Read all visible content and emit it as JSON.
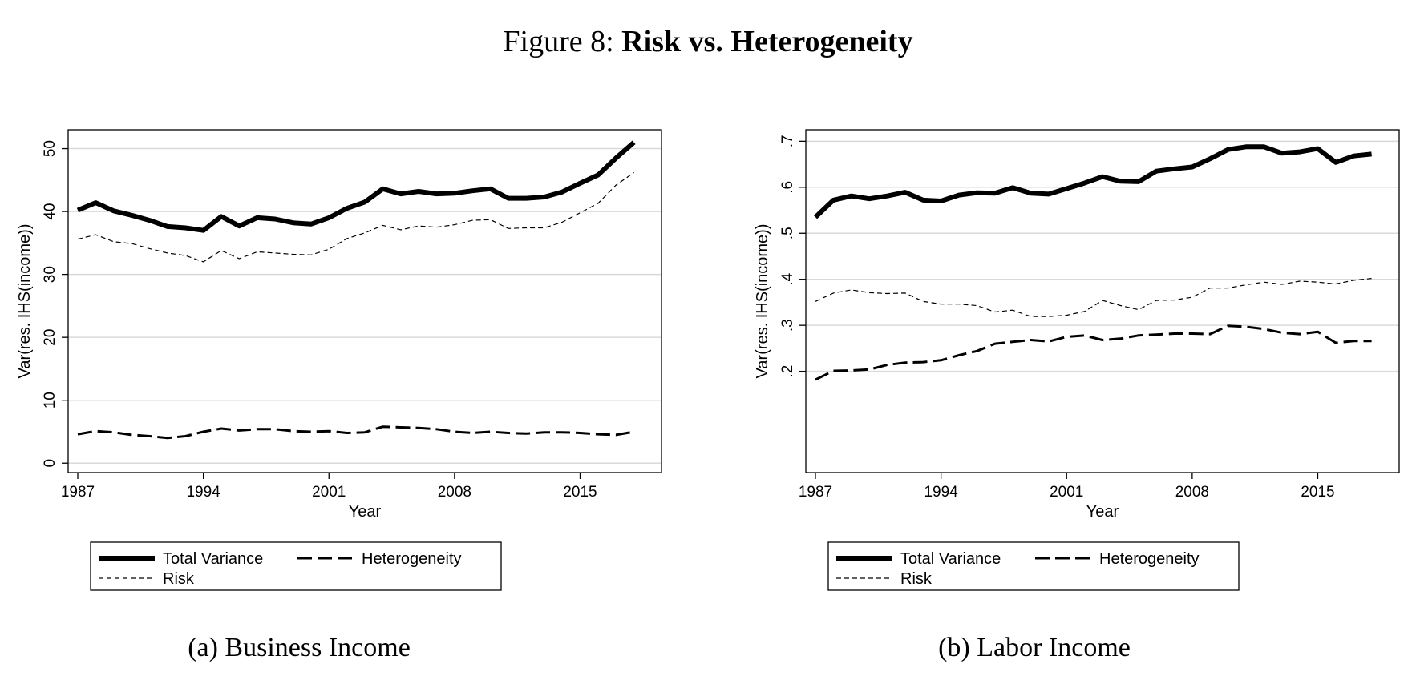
{
  "figure": {
    "prefix": "Figure 8:",
    "title": "Risk vs. Heterogeneity"
  },
  "captions": [
    "(a) Business Income",
    "(b) Labor Income"
  ],
  "colors": {
    "lines": "#000000",
    "grid": "#d9d9d9",
    "frame": "#000000"
  },
  "chart_data": [
    {
      "type": "line",
      "title": "",
      "xlabel": "Year",
      "ylabel": "Var(res. IHS(income))",
      "xlim": [
        1987,
        2019
      ],
      "ylim": [
        -1.5,
        53
      ],
      "xticks": [
        1987,
        1994,
        2001,
        2008,
        2015
      ],
      "yticks": [
        0,
        10,
        20,
        30,
        40,
        50
      ],
      "ytick_labels": [
        "0",
        "10",
        "20",
        "30",
        "40",
        "50"
      ],
      "grid": true,
      "legend_placement": "bottom",
      "x": [
        1987,
        1988,
        1989,
        1990,
        1991,
        1992,
        1993,
        1994,
        1995,
        1996,
        1997,
        1998,
        1999,
        2000,
        2001,
        2002,
        2003,
        2004,
        2005,
        2006,
        2007,
        2008,
        2009,
        2010,
        2011,
        2012,
        2013,
        2014,
        2015,
        2016,
        2017,
        2018,
        2019
      ],
      "series": [
        {
          "name": "Total Variance",
          "style": "thick-solid",
          "values": [
            40.2,
            41.4,
            40.1,
            39.4,
            38.6,
            37.6,
            37.4,
            37.0,
            39.2,
            37.7,
            39.0,
            38.8,
            38.2,
            38.0,
            39.0,
            40.5,
            41.5,
            43.6,
            42.8,
            43.2,
            42.8,
            42.9,
            43.3,
            43.6,
            42.1,
            42.1,
            42.3,
            43.1,
            44.5,
            45.8,
            48.5,
            51.0,
            null
          ]
        },
        {
          "name": "Heterogeneity",
          "style": "long-dash",
          "values": [
            4.6,
            5.1,
            4.9,
            4.5,
            4.3,
            4.0,
            4.3,
            5.0,
            5.5,
            5.2,
            5.4,
            5.4,
            5.1,
            5.0,
            5.1,
            4.8,
            4.9,
            5.8,
            5.7,
            5.6,
            5.4,
            5.0,
            4.8,
            5.0,
            4.8,
            4.7,
            4.9,
            4.9,
            4.8,
            4.6,
            4.5,
            5.0,
            null
          ]
        },
        {
          "name": "Risk",
          "style": "thin-dash",
          "values": [
            35.6,
            36.3,
            35.2,
            34.9,
            34.1,
            33.4,
            33.0,
            32.0,
            33.8,
            32.5,
            33.6,
            33.4,
            33.2,
            33.1,
            34.0,
            35.7,
            36.6,
            37.8,
            37.1,
            37.7,
            37.5,
            37.9,
            38.6,
            38.7,
            37.3,
            37.4,
            37.4,
            38.3,
            39.8,
            41.3,
            44.2,
            46.2,
            null
          ]
        }
      ]
    },
    {
      "type": "line",
      "title": "",
      "xlabel": "Year",
      "ylabel": "Var(res. IHS(income))",
      "xlim": [
        1987,
        2019
      ],
      "ylim": [
        -0.02,
        0.725
      ],
      "xticks": [
        1987,
        1994,
        2001,
        2008,
        2015
      ],
      "yticks": [
        0.2,
        0.3,
        0.4,
        0.5,
        0.6,
        0.7
      ],
      "ytick_labels": [
        ".2",
        ".3",
        ".4",
        ".5",
        ".6",
        ".7"
      ],
      "grid": true,
      "legend_placement": "bottom",
      "x": [
        1987,
        1988,
        1989,
        1990,
        1991,
        1992,
        1993,
        1994,
        1995,
        1996,
        1997,
        1998,
        1999,
        2000,
        2001,
        2002,
        2003,
        2004,
        2005,
        2006,
        2007,
        2008,
        2009,
        2010,
        2011,
        2012,
        2013,
        2014,
        2015,
        2016,
        2017,
        2018,
        2019
      ],
      "series": [
        {
          "name": "Total Variance",
          "style": "thick-solid",
          "values": [
            0.535,
            0.572,
            0.581,
            0.575,
            0.581,
            0.589,
            0.572,
            0.57,
            0.583,
            0.588,
            0.587,
            0.599,
            0.587,
            0.585,
            0.597,
            0.609,
            0.623,
            0.613,
            0.612,
            0.635,
            0.64,
            0.644,
            0.662,
            0.682,
            0.688,
            0.688,
            0.674,
            0.677,
            0.684,
            0.654,
            0.668,
            0.672,
            null
          ]
        },
        {
          "name": "Heterogeneity",
          "style": "long-dash",
          "values": [
            0.182,
            0.201,
            0.202,
            0.204,
            0.214,
            0.219,
            0.22,
            0.224,
            0.235,
            0.244,
            0.26,
            0.264,
            0.268,
            0.265,
            0.275,
            0.278,
            0.268,
            0.271,
            0.278,
            0.28,
            0.282,
            0.282,
            0.281,
            0.299,
            0.297,
            0.292,
            0.284,
            0.281,
            0.286,
            0.262,
            0.266,
            0.266,
            null
          ]
        },
        {
          "name": "Risk",
          "style": "thin-dash",
          "values": [
            0.352,
            0.37,
            0.377,
            0.371,
            0.369,
            0.37,
            0.352,
            0.346,
            0.346,
            0.343,
            0.329,
            0.333,
            0.319,
            0.319,
            0.322,
            0.33,
            0.354,
            0.343,
            0.334,
            0.354,
            0.355,
            0.361,
            0.381,
            0.381,
            0.388,
            0.394,
            0.389,
            0.396,
            0.394,
            0.39,
            0.398,
            0.402,
            null
          ]
        }
      ]
    }
  ]
}
